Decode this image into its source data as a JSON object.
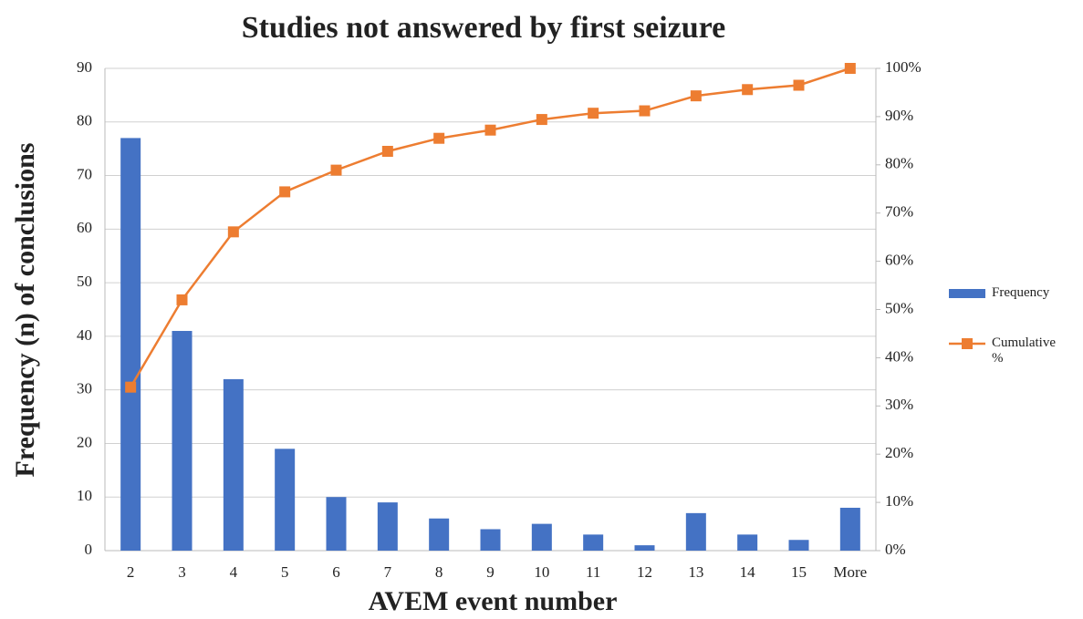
{
  "chart_data": {
    "type": "pareto",
    "title": "Studies not answered by first seizure",
    "x_label": "AVEM event number",
    "y_label": "Frequency (n) of conclusions",
    "categories": [
      "2",
      "3",
      "4",
      "5",
      "6",
      "7",
      "8",
      "9",
      "10",
      "11",
      "12",
      "13",
      "14",
      "15",
      "More"
    ],
    "series": [
      {
        "name": "Frequency",
        "type": "bar",
        "color": "#4472c4",
        "axis": "y",
        "values": [
          77,
          41,
          32,
          19,
          10,
          9,
          6,
          4,
          5,
          3,
          1,
          7,
          3,
          2,
          8
        ]
      },
      {
        "name": "Cumulative %",
        "type": "line",
        "color": "#ed7d31",
        "axis": "y2",
        "values": [
          33.9,
          52.0,
          66.1,
          74.4,
          78.9,
          82.8,
          85.5,
          87.2,
          89.4,
          90.7,
          91.2,
          94.3,
          95.6,
          96.5,
          100
        ]
      }
    ],
    "ylim": [
      0,
      90
    ],
    "yticks": [
      0,
      10,
      20,
      30,
      40,
      50,
      60,
      70,
      80,
      90
    ],
    "y2lim": [
      0,
      100
    ],
    "y2ticks": [
      {
        "value": 0,
        "label": "0%"
      },
      {
        "value": 10,
        "label": "10%"
      },
      {
        "value": 20,
        "label": "20%"
      },
      {
        "value": 30,
        "label": "30%"
      },
      {
        "value": 40,
        "label": "40%"
      },
      {
        "value": 50,
        "label": "50%"
      },
      {
        "value": 60,
        "label": "60%"
      },
      {
        "value": 70,
        "label": "70%"
      },
      {
        "value": 80,
        "label": "80%"
      },
      {
        "value": 90,
        "label": "90%"
      },
      {
        "value": 100,
        "label": "100%"
      }
    ],
    "grid": true,
    "legend": "right"
  }
}
